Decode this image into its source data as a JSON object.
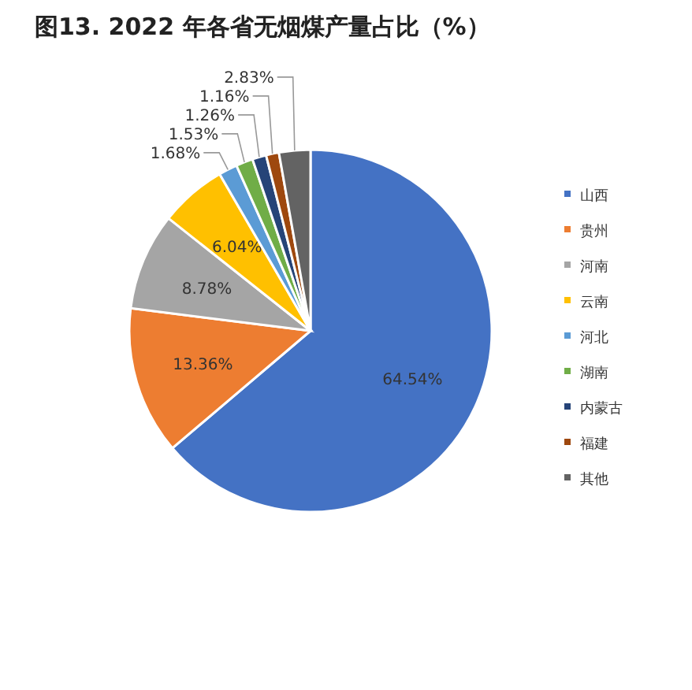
{
  "chart_data": {
    "type": "pie",
    "title": "图13. 2022 年各省无烟煤产量占比（%）",
    "categories": [
      "山西",
      "贵州",
      "河南",
      "云南",
      "河北",
      "湖南",
      "内蒙古",
      "福建",
      "其他"
    ],
    "values": [
      64.54,
      13.36,
      8.78,
      6.04,
      1.68,
      1.53,
      1.26,
      1.16,
      2.83
    ],
    "value_labels": [
      "64.54%",
      "13.36%",
      "8.78%",
      "6.04%",
      "1.68%",
      "1.53%",
      "1.26%",
      "1.16%",
      "2.83%"
    ],
    "colors": [
      "#4472c4",
      "#ed7d31",
      "#a5a5a5",
      "#ffc000",
      "#5b9bd5",
      "#70ad47",
      "#264478",
      "#9e480e",
      "#636363"
    ],
    "legend": "right"
  }
}
